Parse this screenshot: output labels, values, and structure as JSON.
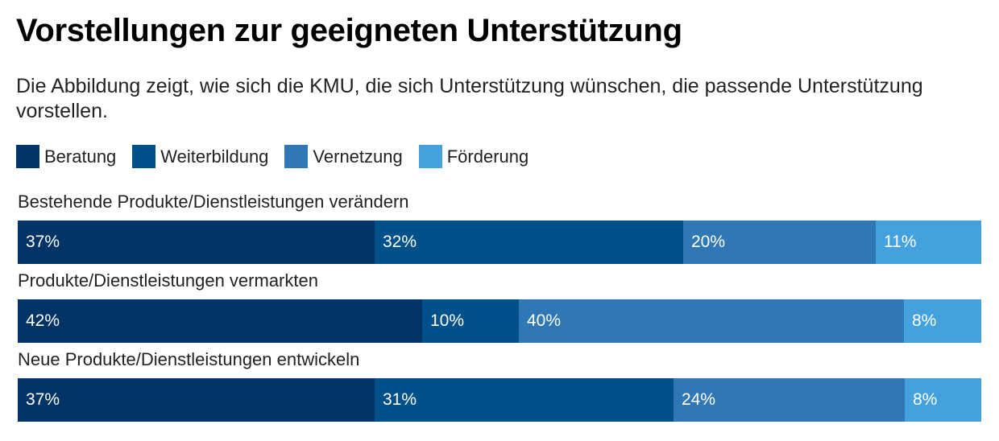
{
  "title": "Vorstellungen zur geeigneten Unterstützung",
  "subtitle": "Die Abbildung zeigt, wie sich die KMU, die sich Unterstützung wünschen, die passende Unterstützung vorstellen.",
  "colors": {
    "Beratung": "#003366",
    "Weiterbildung": "#005089",
    "Vernetzung": "#2f78b5",
    "Förderung": "#45a1dd"
  },
  "chart_data": {
    "type": "bar",
    "orientation": "horizontal",
    "stacked": true,
    "normalized_percent": true,
    "title": "Vorstellungen zur geeigneten Unterstützung",
    "legend_position": "top-left",
    "categories": [
      "Bestehende Produkte/Dienstleistungen verändern",
      "Produkte/Dienstleistungen vermarkten",
      "Neue Produkte/Dienstleistungen entwickeln"
    ],
    "series": [
      {
        "name": "Beratung",
        "values": [
          37,
          42,
          37
        ],
        "labels": [
          "37%",
          "42%",
          "37%"
        ]
      },
      {
        "name": "Weiterbildung",
        "values": [
          32,
          10,
          31
        ],
        "labels": [
          "32%",
          "10%",
          "31%"
        ]
      },
      {
        "name": "Vernetzung",
        "values": [
          20,
          40,
          24
        ],
        "labels": [
          "20%",
          "40%",
          "24%"
        ]
      },
      {
        "name": "Förderung",
        "values": [
          11,
          8,
          8
        ],
        "labels": [
          "11%",
          "8%",
          "8%"
        ]
      }
    ]
  }
}
